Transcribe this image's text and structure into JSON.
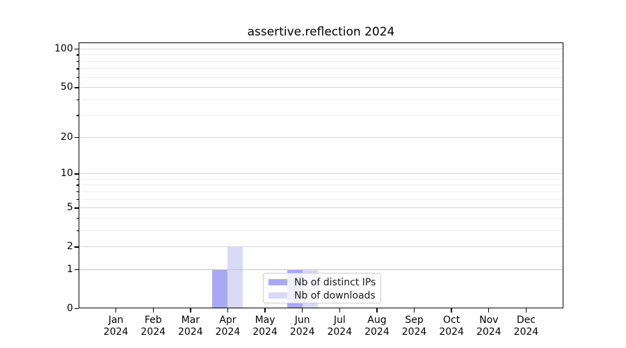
{
  "chart_data": {
    "type": "bar",
    "title": "assertive.reflection 2024",
    "months": [
      "Jan",
      "Feb",
      "Mar",
      "Apr",
      "May",
      "Jun",
      "Jul",
      "Aug",
      "Sep",
      "Oct",
      "Nov",
      "Dec"
    ],
    "x_tick_year": "2024",
    "series": [
      {
        "name": "Nb of distinct IPs",
        "color": "#a9a9f2",
        "values": [
          0,
          0,
          0,
          1,
          0,
          1,
          0,
          0,
          0,
          0,
          0,
          0
        ]
      },
      {
        "name": "Nb of downloads",
        "color": "#d9d9f8",
        "values": [
          0,
          0,
          0,
          2,
          0,
          1,
          0,
          0,
          0,
          0,
          0,
          0
        ]
      }
    ],
    "yscale": "log1p",
    "ylim": [
      0,
      110
    ],
    "yticks": [
      0,
      1,
      2,
      5,
      10,
      20,
      50,
      100
    ],
    "minor_yticks": [
      3,
      4,
      6,
      7,
      8,
      9,
      30,
      40,
      60,
      70,
      80,
      90
    ],
    "grid": true,
    "legend": {
      "position": "lower center"
    }
  },
  "colors": {
    "grid_major": "#d6d6d6",
    "grid_minor": "#efefef",
    "grid_level1": "#c4c4c4",
    "axis": "#000000",
    "legend_border": "#cccccc",
    "background": "#ffffff"
  }
}
